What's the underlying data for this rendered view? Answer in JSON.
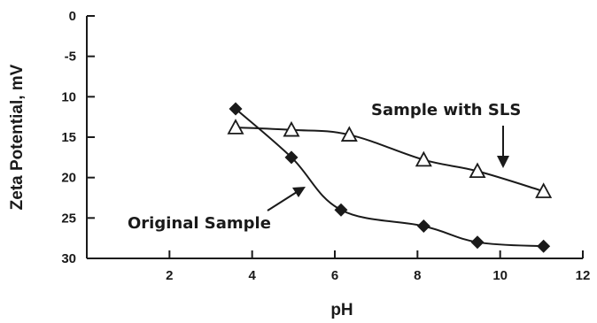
{
  "chart_data": {
    "type": "line",
    "xlabel": "pH",
    "ylabel": "Zeta Potential, mV",
    "xlim": [
      0,
      12
    ],
    "ylim": [
      0,
      30
    ],
    "y_inverted": true,
    "x_ticks": [
      2,
      4,
      6,
      8,
      10,
      12
    ],
    "y_ticks": [
      0,
      5,
      10,
      15,
      20,
      25,
      30
    ],
    "y_tick_labels": [
      "0",
      "-5",
      "10",
      "15",
      "20",
      "25",
      "30"
    ],
    "grid": false,
    "legend": "none",
    "series": [
      {
        "name": "Original Sample",
        "marker": "filled-diamond",
        "x": [
          3.6,
          4.95,
          6.15,
          8.15,
          9.45,
          11.05
        ],
        "y": [
          11.5,
          17.5,
          24,
          26,
          28,
          28.5
        ]
      },
      {
        "name": "Sample with SLS",
        "marker": "open-triangle",
        "x": [
          3.6,
          4.95,
          6.35,
          8.15,
          9.45,
          11.05
        ],
        "y": [
          13.8,
          14.1,
          14.7,
          17.8,
          19.2,
          21.7
        ]
      }
    ],
    "annotations": [
      {
        "text": "Sample with SLS",
        "series": 1
      },
      {
        "text": "Original Sample",
        "series": 0
      }
    ],
    "colors": {
      "line": "#1a1a1a",
      "marker": "#1a1a1a",
      "axis": "#1a1a1a"
    }
  }
}
